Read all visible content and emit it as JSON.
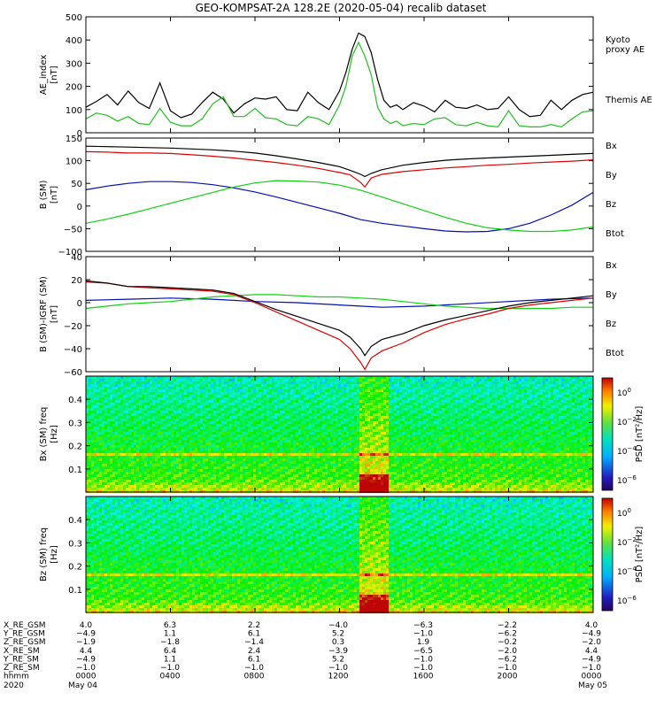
{
  "title": "GEO-KOMPSAT-2A 128.2E (2020-05-04) recalib dataset",
  "colors": {
    "black": "#000000",
    "red": "#e00000",
    "green": "#10d010",
    "blue": "#0010b0",
    "kyoto": "#20c020"
  },
  "chart_data": [
    {
      "type": "line",
      "ylabel": "AE_index [nT]",
      "ylim": [
        0,
        500
      ],
      "yticks": [
        0,
        100,
        200,
        300,
        400,
        500
      ],
      "xlim": [
        0,
        24
      ],
      "series": [
        {
          "name": "Themis AE",
          "color": "#000000",
          "x": [
            0,
            0.5,
            1,
            1.5,
            2,
            2.5,
            3,
            3.5,
            4,
            4.5,
            5,
            5.5,
            6,
            6.5,
            7,
            7.5,
            8,
            8.5,
            9,
            9.5,
            10,
            10.5,
            11,
            11.5,
            12,
            12.3,
            12.6,
            12.9,
            13.2,
            13.5,
            13.8,
            14.1,
            14.4,
            14.7,
            15,
            15.5,
            16,
            16.5,
            17,
            17.5,
            18,
            18.5,
            19,
            19.5,
            20,
            20.5,
            21,
            21.5,
            22,
            22.5,
            23,
            23.5,
            24
          ],
          "y": [
            110,
            135,
            165,
            120,
            180,
            130,
            105,
            215,
            95,
            65,
            80,
            130,
            175,
            145,
            85,
            125,
            150,
            145,
            155,
            100,
            95,
            175,
            130,
            100,
            180,
            260,
            360,
            430,
            415,
            345,
            230,
            140,
            110,
            120,
            100,
            130,
            115,
            90,
            140,
            110,
            105,
            120,
            100,
            105,
            155,
            100,
            70,
            75,
            140,
            100,
            140,
            165,
            175
          ]
        },
        {
          "name": "Kyoto proxy AE",
          "color": "#20c020",
          "x": [
            0,
            0.5,
            1,
            1.5,
            2,
            2.5,
            3,
            3.5,
            4,
            4.5,
            5,
            5.5,
            6,
            6.5,
            7,
            7.5,
            8,
            8.5,
            9,
            9.5,
            10,
            10.5,
            11,
            11.5,
            12,
            12.3,
            12.6,
            12.9,
            13.2,
            13.5,
            13.8,
            14.1,
            14.4,
            14.7,
            15,
            15.5,
            16,
            16.5,
            17,
            17.5,
            18,
            18.5,
            19,
            19.5,
            20,
            20.5,
            21,
            21.5,
            22,
            22.5,
            23,
            23.5,
            24
          ],
          "y": [
            60,
            85,
            75,
            50,
            70,
            40,
            35,
            105,
            45,
            30,
            30,
            60,
            125,
            155,
            70,
            70,
            105,
            65,
            60,
            35,
            30,
            70,
            60,
            35,
            120,
            200,
            330,
            390,
            330,
            250,
            110,
            60,
            40,
            50,
            30,
            40,
            35,
            60,
            65,
            35,
            30,
            45,
            30,
            25,
            95,
            30,
            25,
            25,
            35,
            25,
            60,
            90,
            95
          ]
        }
      ],
      "labels": [
        {
          "text": "Kyoto\nproxy AE",
          "color": "#20c020"
        },
        {
          "text": "Themis AE",
          "color": "#000000"
        }
      ]
    },
    {
      "type": "line",
      "ylabel": "B (SM) [nT]",
      "ylim": [
        -100,
        150
      ],
      "yticks": [
        -100,
        -50,
        0,
        50,
        100,
        150
      ],
      "xlim": [
        0,
        24
      ],
      "series": [
        {
          "name": "Bx",
          "color": "#0010b0",
          "x": [
            0,
            1,
            2,
            3,
            4,
            5,
            6,
            7,
            8,
            9,
            10,
            11,
            12,
            13,
            14,
            15,
            16,
            17,
            18,
            19,
            20,
            21,
            22,
            23,
            24
          ],
          "y": [
            36,
            44,
            50,
            54,
            54,
            52,
            47,
            40,
            31,
            20,
            8,
            -4,
            -16,
            -30,
            -38,
            -44,
            -50,
            -55,
            -57,
            -56,
            -50,
            -38,
            -20,
            2,
            30
          ]
        },
        {
          "name": "By",
          "color": "#10d010",
          "x": [
            0,
            1,
            2,
            3,
            4,
            5,
            6,
            7,
            8,
            9,
            10,
            11,
            12,
            13,
            14,
            15,
            16,
            17,
            18,
            19,
            20,
            21,
            22,
            23,
            24
          ],
          "y": [
            -38,
            -29,
            -18,
            -6,
            6,
            18,
            30,
            42,
            51,
            56,
            55,
            53,
            46,
            35,
            20,
            5,
            -10,
            -25,
            -38,
            -48,
            -53,
            -56,
            -56,
            -53,
            -46
          ]
        },
        {
          "name": "Bz",
          "color": "#e00000",
          "x": [
            0,
            1,
            2,
            3,
            4,
            5,
            6,
            7,
            8,
            9,
            10,
            11,
            12,
            12.5,
            13,
            13.2,
            13.5,
            14,
            15,
            16,
            17,
            18,
            19,
            20,
            21,
            22,
            23,
            24
          ],
          "y": [
            120,
            119,
            117,
            117,
            116,
            113,
            110,
            106,
            101,
            96,
            90,
            83,
            74,
            69,
            52,
            42,
            62,
            70,
            76,
            80,
            84,
            87,
            90,
            92,
            95,
            97,
            99,
            102
          ]
        },
        {
          "name": "Btot",
          "color": "#000000",
          "x": [
            0,
            1,
            2,
            3,
            4,
            5,
            6,
            7,
            8,
            9,
            10,
            11,
            12,
            12.5,
            13,
            13.2,
            13.5,
            14,
            15,
            16,
            17,
            18,
            19,
            20,
            21,
            22,
            23,
            24
          ],
          "y": [
            132,
            131,
            130,
            129,
            128,
            126,
            124,
            121,
            117,
            111,
            104,
            96,
            87,
            79,
            70,
            65,
            72,
            80,
            90,
            96,
            101,
            104,
            106,
            108,
            110,
            112,
            114,
            116
          ]
        }
      ],
      "labels": [
        {
          "text": "Bx",
          "color": "#0010b0"
        },
        {
          "text": "By",
          "color": "#10d010"
        },
        {
          "text": "Bz",
          "color": "#e00000"
        },
        {
          "text": "Btot",
          "color": "#000000"
        }
      ]
    },
    {
      "type": "line",
      "ylabel": "B (SM)-IGRF (SM) [nT]",
      "ylim": [
        -60,
        40
      ],
      "yticks": [
        -60,
        -40,
        -20,
        0,
        20,
        40
      ],
      "xlim": [
        0,
        24
      ],
      "series": [
        {
          "name": "Bx",
          "color": "#0010b0",
          "x": [
            0,
            2,
            4,
            6,
            8,
            10,
            12,
            13,
            14,
            16,
            18,
            20,
            22,
            24
          ],
          "y": [
            2,
            3,
            4,
            3,
            1,
            0,
            -2,
            -3,
            -4,
            -3,
            -1,
            1,
            3,
            4
          ]
        },
        {
          "name": "By",
          "color": "#10d010",
          "x": [
            0,
            1,
            2,
            3,
            4,
            5,
            6,
            7,
            8,
            9,
            10,
            11,
            12,
            13,
            14,
            15,
            16,
            17,
            18,
            19,
            20,
            21,
            22,
            23,
            24
          ],
          "y": [
            -5,
            -3,
            -1,
            0,
            1,
            3,
            5,
            6,
            7,
            7,
            6,
            5,
            5,
            4,
            3,
            1,
            -1,
            -3,
            -4,
            -5,
            -5,
            -5,
            -5,
            -4,
            -4
          ]
        },
        {
          "name": "Bz",
          "color": "#e00000",
          "x": [
            0,
            1,
            2,
            3,
            4,
            5,
            6,
            7,
            8,
            9,
            10,
            11,
            12,
            12.5,
            13,
            13.2,
            13.5,
            14,
            15,
            16,
            17,
            18,
            19,
            20,
            21,
            22,
            23,
            24
          ],
          "y": [
            18,
            17,
            14,
            13,
            12,
            11,
            10,
            7,
            0,
            -8,
            -16,
            -24,
            -32,
            -40,
            -52,
            -58,
            -48,
            -42,
            -35,
            -26,
            -19,
            -14,
            -10,
            -5,
            -2,
            0,
            2,
            4
          ]
        },
        {
          "name": "Btot",
          "color": "#000000",
          "x": [
            0,
            1,
            2,
            3,
            4,
            5,
            6,
            7,
            8,
            9,
            10,
            11,
            12,
            12.5,
            13,
            13.2,
            13.5,
            14,
            15,
            16,
            17,
            18,
            19,
            20,
            21,
            22,
            23,
            24
          ],
          "y": [
            19,
            17,
            14,
            14,
            13,
            12,
            11,
            8,
            1,
            -6,
            -12,
            -18,
            -24,
            -30,
            -40,
            -46,
            -38,
            -32,
            -27,
            -20,
            -15,
            -11,
            -7,
            -3,
            0,
            2,
            4,
            6
          ]
        }
      ],
      "labels": [
        {
          "text": "Bx",
          "color": "#0010b0"
        },
        {
          "text": "By",
          "color": "#10d010"
        },
        {
          "text": "Bz",
          "color": "#e00000"
        },
        {
          "text": "Btot",
          "color": "#000000"
        }
      ]
    },
    {
      "type": "heatmap",
      "ylabel": "Bx (SM) freq [Hz]",
      "ylim": [
        0,
        0.5
      ],
      "yticks": [
        0.1,
        0.2,
        0.3,
        0.4
      ],
      "xlim": [
        0,
        24
      ],
      "colorbar": {
        "label": "PSD [nT^2/Hz]",
        "ticks": [
          "10^0",
          "10^-2",
          "10^-4",
          "10^-6"
        ]
      },
      "features": {
        "band_hz": 0.17,
        "event_start": 12.9,
        "event_end": 14.2
      }
    },
    {
      "type": "heatmap",
      "ylabel": "Bz (SM) freq [Hz]",
      "ylim": [
        0,
        0.5
      ],
      "yticks": [
        0.1,
        0.2,
        0.3,
        0.4
      ],
      "xlim": [
        0,
        24
      ],
      "colorbar": {
        "label": "PSD [nT^2/Hz]",
        "ticks": [
          "10^0",
          "10^-2",
          "10^-4",
          "10^-6"
        ]
      },
      "features": {
        "band_hz": 0.17,
        "event_start": 12.9,
        "event_end": 14.2
      }
    }
  ],
  "ephemeris": {
    "rows": [
      {
        "label": "X_RE_GSM",
        "values": [
          "4.0",
          "6.3",
          "2.2",
          "-4.0",
          "-6.3",
          "-2.2",
          "4.0"
        ]
      },
      {
        "label": "Y_RE_GSM",
        "values": [
          "-4.9",
          "1.1",
          "6.1",
          "5.2",
          "-1.0",
          "-6.2",
          "-4.9"
        ]
      },
      {
        "label": "Z_RE_GSM",
        "values": [
          "-1.9",
          "-1.8",
          "-1.4",
          "0.3",
          "1.9",
          "-0.2",
          "-2.0"
        ]
      },
      {
        "label": "X_RE_SM",
        "values": [
          "4.4",
          "6.4",
          "2.4",
          "-3.9",
          "-6.5",
          "-2.0",
          "4.4"
        ]
      },
      {
        "label": "Y_RE_SM",
        "values": [
          "-4.9",
          "1.1",
          "6.1",
          "5.2",
          "-1.0",
          "-6.2",
          "-4.9"
        ]
      },
      {
        "label": "Z_RE_SM",
        "values": [
          "-1.0",
          "-1.0",
          "-1.0",
          "-1.0",
          "-1.0",
          "-1.0",
          "-1.0"
        ]
      },
      {
        "label": "hhmm",
        "values": [
          "0000",
          "0400",
          "0800",
          "1200",
          "1600",
          "2000",
          "0000"
        ]
      }
    ],
    "year": "2020",
    "date_start": "May 04",
    "date_end": "May 05"
  }
}
